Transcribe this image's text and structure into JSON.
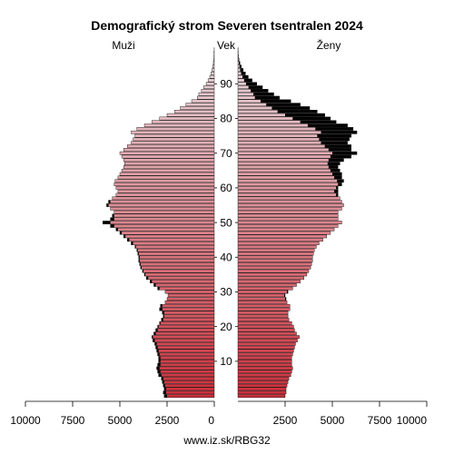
{
  "chart_data": {
    "type": "bar",
    "orientation": "horizontal-population-pyramid",
    "title": "Demografický strom Severen tsentralen 2024",
    "labels": {
      "male": "Muži",
      "age": "Vek",
      "female": "Ženy"
    },
    "source": "www.iz.sk/RBG32",
    "x_ticks_left": [
      "10000",
      "7500",
      "5000",
      "2500",
      "0"
    ],
    "x_ticks_right": [
      "2500",
      "5000",
      "7500",
      "10000"
    ],
    "age_ticks": [
      "10",
      "20",
      "30",
      "40",
      "50",
      "60",
      "70",
      "80",
      "90"
    ],
    "xlim": [
      0,
      10000
    ],
    "age_range": [
      0,
      100
    ],
    "series_note": "black segments = difference between sexes at each age",
    "colors": {
      "bar_dark": "#cc2f3a",
      "bar_light": "#e9dde2",
      "excess": "#000000",
      "outline": "#000000"
    },
    "ages": [
      0,
      1,
      2,
      3,
      4,
      5,
      6,
      7,
      8,
      9,
      10,
      11,
      12,
      13,
      14,
      15,
      16,
      17,
      18,
      19,
      20,
      21,
      22,
      23,
      24,
      25,
      26,
      27,
      28,
      29,
      30,
      31,
      32,
      33,
      34,
      35,
      36,
      37,
      38,
      39,
      40,
      41,
      42,
      43,
      44,
      45,
      46,
      47,
      48,
      49,
      50,
      51,
      52,
      53,
      54,
      55,
      56,
      57,
      58,
      59,
      60,
      61,
      62,
      63,
      64,
      65,
      66,
      67,
      68,
      69,
      70,
      71,
      72,
      73,
      74,
      75,
      76,
      77,
      78,
      79,
      80,
      81,
      82,
      83,
      84,
      85,
      86,
      87,
      88,
      89,
      90,
      91,
      92,
      93,
      94,
      95,
      96,
      97,
      98,
      99,
      100
    ],
    "male": [
      2650,
      2700,
      2650,
      2700,
      2750,
      2800,
      2950,
      3000,
      3050,
      3000,
      2950,
      2950,
      3000,
      3050,
      3100,
      3150,
      3250,
      3300,
      3200,
      3100,
      3000,
      2900,
      2800,
      2700,
      2750,
      2900,
      2850,
      2600,
      2500,
      2450,
      2600,
      3000,
      3200,
      3400,
      3600,
      3700,
      3800,
      3900,
      3950,
      4000,
      4000,
      4050,
      4100,
      4200,
      4400,
      4600,
      4800,
      5000,
      5200,
      5500,
      5900,
      5500,
      5400,
      5300,
      5500,
      5700,
      5600,
      5400,
      5200,
      5100,
      5200,
      5300,
      5250,
      5100,
      5000,
      4900,
      4800,
      4750,
      4800,
      4900,
      5000,
      4800,
      4600,
      4400,
      4300,
      4200,
      4400,
      4100,
      3700,
      3300,
      2900,
      2500,
      2100,
      1800,
      1500,
      1200,
      900,
      820,
      680,
      560,
      430,
      330,
      240,
      170,
      120,
      80,
      50,
      30,
      20,
      10,
      5
    ],
    "female": [
      2500,
      2550,
      2550,
      2600,
      2650,
      2700,
      2800,
      2850,
      2900,
      2850,
      2850,
      2850,
      2900,
      2950,
      3000,
      3050,
      3150,
      3250,
      3100,
      3000,
      2950,
      2850,
      2700,
      2650,
      2650,
      2750,
      2750,
      2600,
      2550,
      2500,
      2650,
      2900,
      3100,
      3300,
      3500,
      3650,
      3750,
      3850,
      3900,
      3950,
      3950,
      4000,
      4050,
      4150,
      4300,
      4500,
      4700,
      4900,
      5100,
      5300,
      5500,
      5300,
      5300,
      5300,
      5500,
      5600,
      5500,
      5400,
      5300,
      5300,
      5300,
      5500,
      5600,
      5500,
      5500,
      5400,
      5300,
      5400,
      5600,
      6000,
      6300,
      6000,
      6000,
      5800,
      5900,
      6000,
      6300,
      6100,
      5800,
      5200,
      4900,
      4600,
      4200,
      3800,
      3300,
      2800,
      2200,
      1900,
      1600,
      1300,
      1000,
      750,
      550,
      400,
      280,
      180,
      110,
      60,
      30,
      15,
      8
    ],
    "male_excess": [
      150,
      150,
      100,
      100,
      100,
      100,
      150,
      150,
      150,
      150,
      100,
      100,
      100,
      100,
      100,
      100,
      100,
      50,
      100,
      100,
      50,
      50,
      100,
      50,
      100,
      150,
      100,
      0,
      0,
      0,
      0,
      100,
      100,
      100,
      100,
      50,
      50,
      50,
      50,
      50,
      50,
      50,
      50,
      50,
      100,
      100,
      100,
      100,
      100,
      200,
      400,
      200,
      100,
      0,
      0,
      100,
      100,
      0,
      0,
      0,
      0,
      0,
      0,
      0,
      0,
      0,
      0,
      0,
      0,
      0,
      0,
      0,
      0,
      0,
      0,
      0,
      0,
      0,
      0,
      0,
      0,
      0,
      0,
      0,
      0,
      0,
      0,
      0,
      0,
      0,
      0,
      0,
      0,
      0,
      0,
      0,
      0,
      0,
      0,
      0,
      0
    ],
    "female_excess": [
      0,
      0,
      0,
      0,
      0,
      0,
      0,
      0,
      0,
      0,
      0,
      0,
      0,
      0,
      0,
      0,
      0,
      0,
      0,
      0,
      0,
      0,
      0,
      0,
      0,
      0,
      0,
      0,
      50,
      50,
      50,
      0,
      0,
      0,
      0,
      0,
      0,
      0,
      0,
      0,
      0,
      0,
      0,
      0,
      0,
      0,
      0,
      0,
      0,
      0,
      0,
      0,
      0,
      0,
      0,
      0,
      0,
      0,
      100,
      200,
      100,
      200,
      350,
      400,
      500,
      500,
      500,
      650,
      800,
      1100,
      1300,
      1200,
      1400,
      1400,
      1600,
      1800,
      1900,
      2000,
      2100,
      1900,
      2000,
      2100,
      2100,
      2000,
      1800,
      1600,
      1300,
      1080,
      920,
      740,
      570,
      420,
      310,
      230,
      160,
      100,
      60,
      30,
      10,
      5,
      3
    ]
  }
}
